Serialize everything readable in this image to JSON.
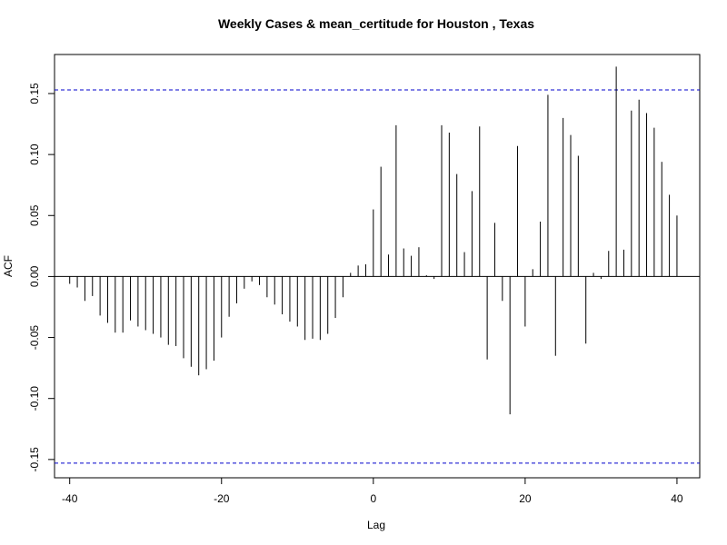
{
  "chart_data": {
    "type": "bar",
    "title": "Weekly Cases & mean_certitude for Houston , Texas",
    "xlabel": "Lag",
    "ylabel": "ACF",
    "xlim": [
      -42,
      43
    ],
    "ylim": [
      -0.165,
      0.182
    ],
    "x_ticks": [
      -40,
      -20,
      0,
      20,
      40
    ],
    "y_ticks": [
      -0.15,
      -0.1,
      -0.05,
      0.0,
      0.05,
      0.1,
      0.15
    ],
    "x_tick_labels": [
      "-40",
      "-20",
      "0",
      "20",
      "40"
    ],
    "y_tick_labels": [
      "-0.15",
      "-0.10",
      "-0.05",
      "0.00",
      "0.05",
      "0.10",
      "0.15"
    ],
    "confidence_bound": 0.153,
    "confidence_color": "#0000cc",
    "bar_color": "#000000",
    "grid": false,
    "lags": [
      -40,
      -39,
      -38,
      -37,
      -36,
      -35,
      -34,
      -33,
      -32,
      -31,
      -30,
      -29,
      -28,
      -27,
      -26,
      -25,
      -24,
      -23,
      -22,
      -21,
      -20,
      -19,
      -18,
      -17,
      -16,
      -15,
      -14,
      -13,
      -12,
      -11,
      -10,
      -9,
      -8,
      -7,
      -6,
      -5,
      -4,
      -3,
      -2,
      -1,
      0,
      1,
      2,
      3,
      4,
      5,
      6,
      7,
      8,
      9,
      10,
      11,
      12,
      13,
      14,
      15,
      16,
      17,
      18,
      19,
      20,
      21,
      22,
      23,
      24,
      25,
      26,
      27,
      28,
      29,
      30,
      31,
      32,
      33,
      34,
      35,
      36,
      37,
      38,
      39,
      40
    ],
    "values": [
      -0.006,
      -0.009,
      -0.02,
      -0.016,
      -0.032,
      -0.038,
      -0.046,
      -0.046,
      -0.036,
      -0.041,
      -0.044,
      -0.047,
      -0.05,
      -0.056,
      -0.057,
      -0.067,
      -0.074,
      -0.081,
      -0.076,
      -0.069,
      -0.05,
      -0.033,
      -0.022,
      -0.01,
      -0.004,
      -0.007,
      -0.017,
      -0.023,
      -0.031,
      -0.037,
      -0.041,
      -0.052,
      -0.051,
      -0.052,
      -0.047,
      -0.034,
      -0.017,
      0.003,
      0.009,
      0.01,
      0.055,
      0.09,
      0.018,
      0.124,
      0.023,
      0.017,
      0.024,
      0.001,
      -0.002,
      0.124,
      0.118,
      0.084,
      0.02,
      0.07,
      0.123,
      -0.068,
      0.044,
      -0.02,
      -0.113,
      0.107,
      -0.041,
      0.006,
      0.045,
      0.149,
      -0.065,
      0.13,
      0.116,
      0.099,
      -0.055,
      0.003,
      -0.002,
      0.021,
      0.172,
      0.022,
      0.136,
      0.145,
      0.134,
      0.122,
      0.094,
      0.067,
      0.05
    ]
  }
}
